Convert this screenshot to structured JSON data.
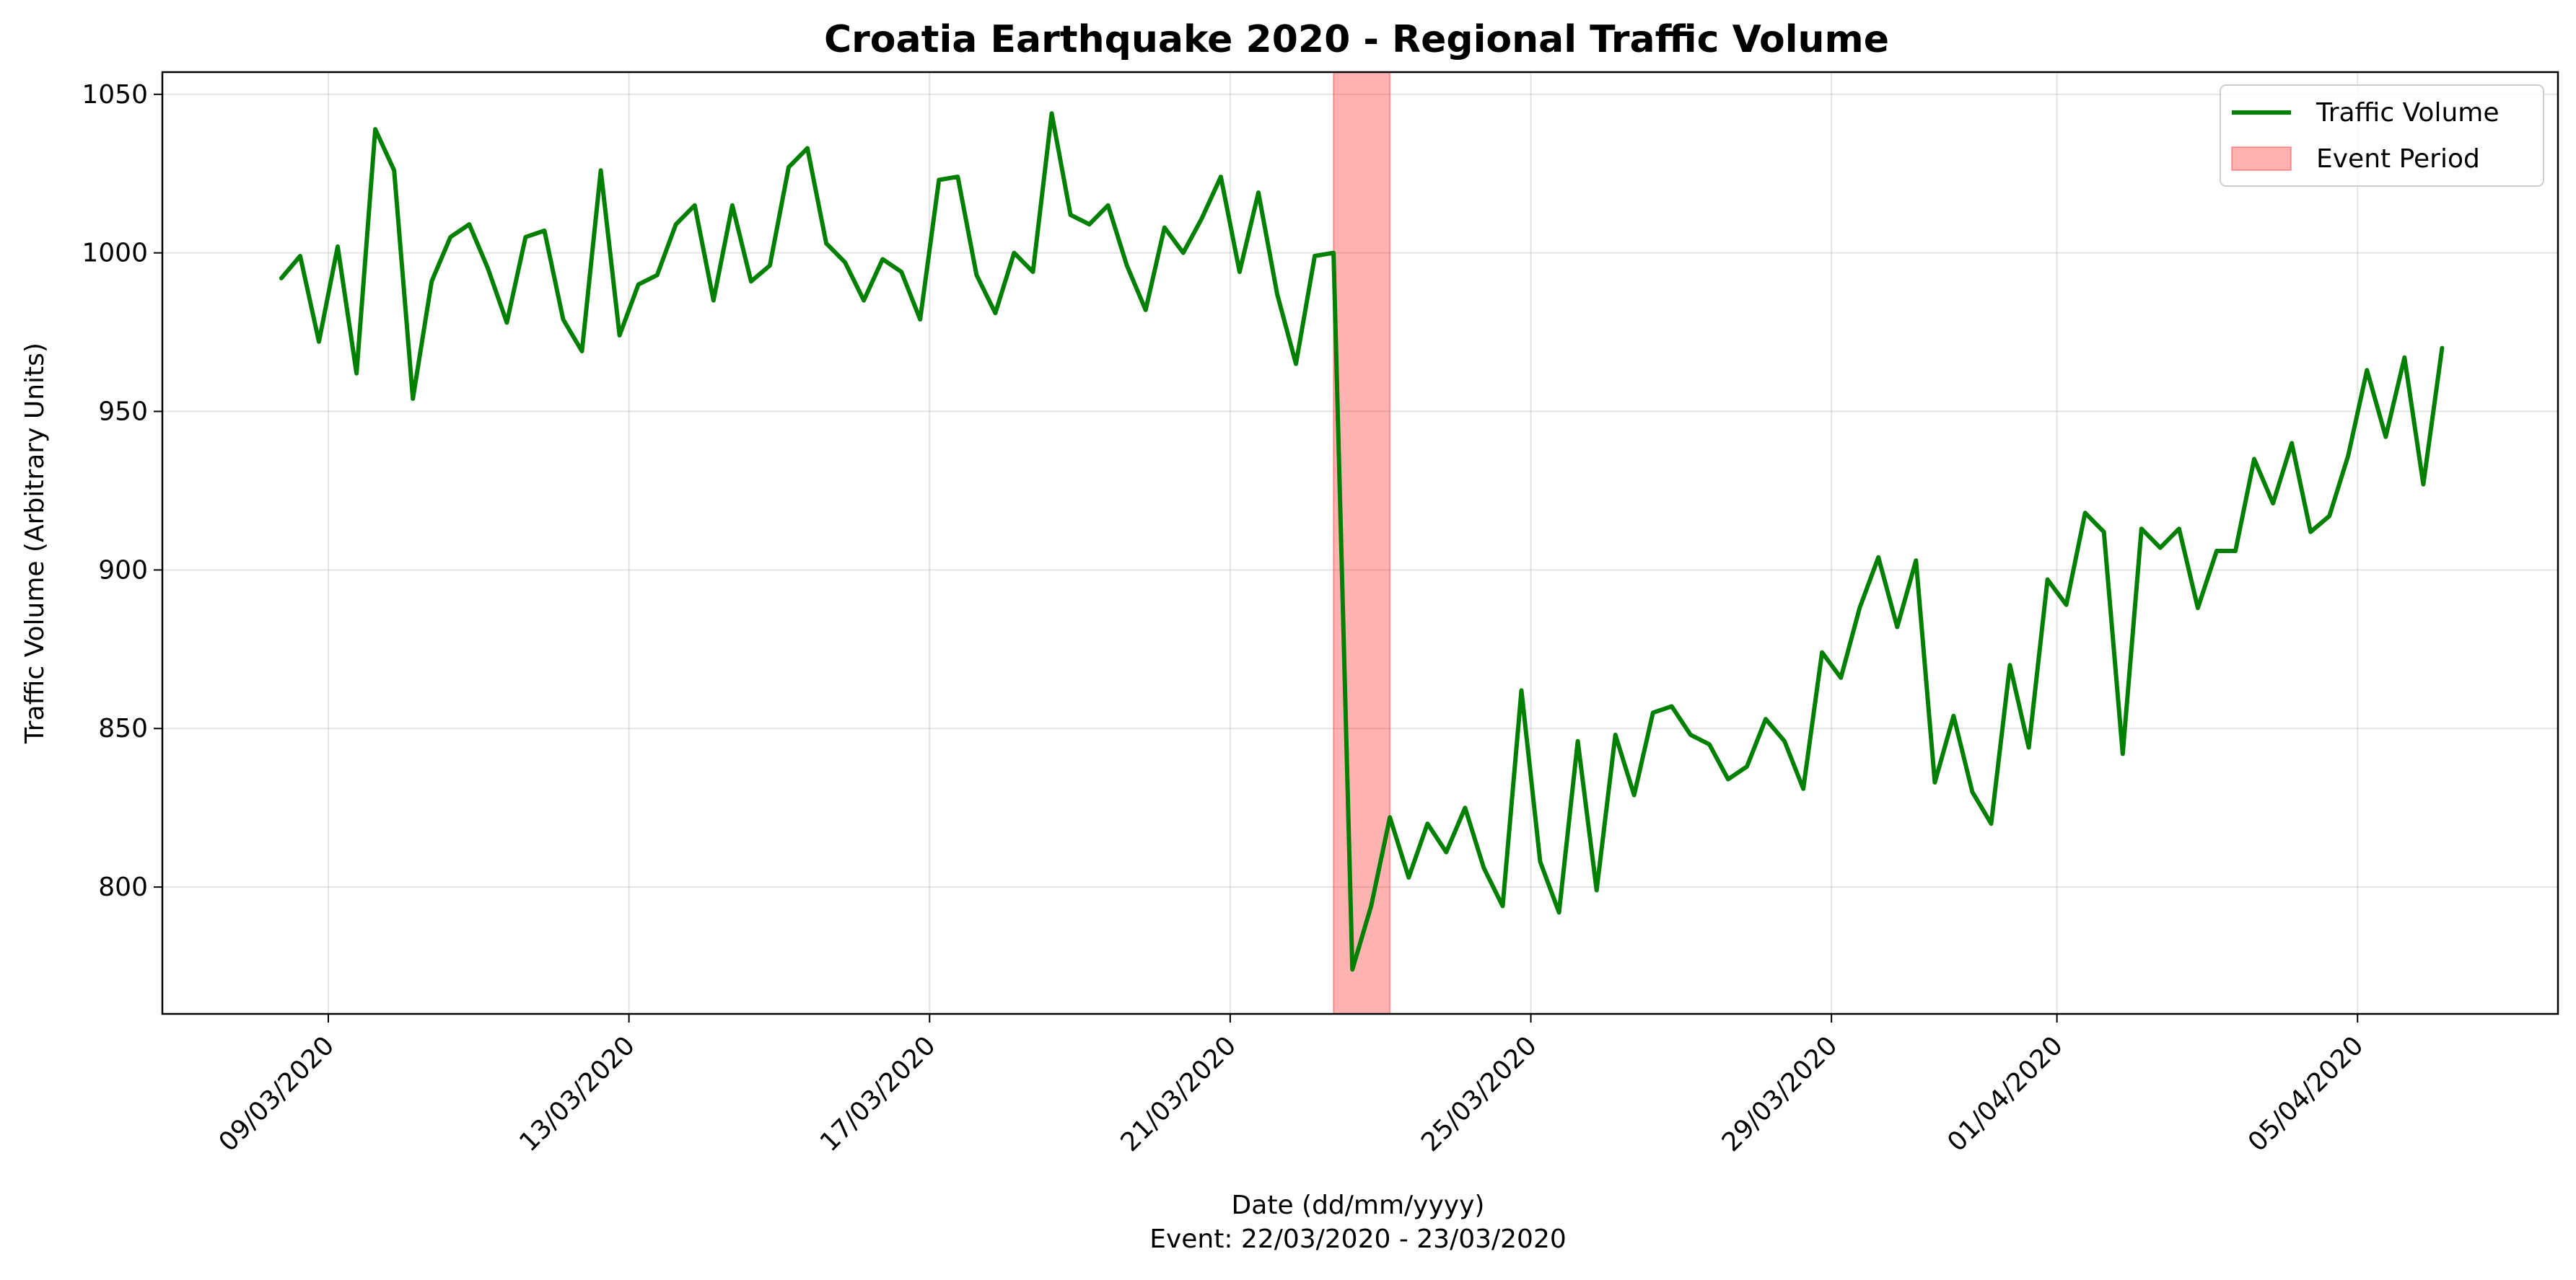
{
  "chart_data": {
    "type": "line",
    "title": "Croatia Earthquake 2020 - Regional Traffic Volume",
    "xlabel": "Date (dd/mm/yyyy)",
    "xlabel_note": "Event: 22/03/2020 - 23/03/2020",
    "ylabel": "Traffic Volume (Arbitrary Units)",
    "grid": true,
    "legend_position": "top-right",
    "x_tick_labels": [
      "09/03/2020",
      "13/03/2020",
      "17/03/2020",
      "21/03/2020",
      "25/03/2020",
      "29/03/2020",
      "01/04/2020",
      "05/04/2020"
    ],
    "x_tick_dates": [
      "2020-03-09",
      "2020-03-13",
      "2020-03-17",
      "2020-03-21",
      "2020-03-25",
      "2020-03-29",
      "2020-04-01",
      "2020-04-05"
    ],
    "y_ticks": [
      800,
      850,
      900,
      950,
      1000,
      1050
    ],
    "xlim": [
      "2020-03-06 19:00",
      "2020-04-07 16:00"
    ],
    "ylim": [
      760,
      1057
    ],
    "series": [
      {
        "name": "Traffic Volume",
        "color": "#008000",
        "points": [
          [
            "2020-03-08 09:00",
            992
          ],
          [
            "2020-03-08 15:00",
            999
          ],
          [
            "2020-03-08 21:00",
            972
          ],
          [
            "2020-03-09 03:00",
            1002
          ],
          [
            "2020-03-09 09:00",
            962
          ],
          [
            "2020-03-09 15:00",
            1039
          ],
          [
            "2020-03-09 21:00",
            1026
          ],
          [
            "2020-03-10 03:00",
            954
          ],
          [
            "2020-03-10 09:00",
            991
          ],
          [
            "2020-03-10 15:00",
            1005
          ],
          [
            "2020-03-10 21:00",
            1009
          ],
          [
            "2020-03-11 03:00",
            995
          ],
          [
            "2020-03-11 09:00",
            978
          ],
          [
            "2020-03-11 15:00",
            1005
          ],
          [
            "2020-03-11 21:00",
            1007
          ],
          [
            "2020-03-12 03:00",
            979
          ],
          [
            "2020-03-12 09:00",
            969
          ],
          [
            "2020-03-12 15:00",
            1026
          ],
          [
            "2020-03-12 21:00",
            974
          ],
          [
            "2020-03-13 03:00",
            990
          ],
          [
            "2020-03-13 09:00",
            993
          ],
          [
            "2020-03-13 15:00",
            1009
          ],
          [
            "2020-03-13 21:00",
            1015
          ],
          [
            "2020-03-14 03:00",
            985
          ],
          [
            "2020-03-14 09:00",
            1015
          ],
          [
            "2020-03-14 15:00",
            991
          ],
          [
            "2020-03-14 21:00",
            996
          ],
          [
            "2020-03-15 03:00",
            1027
          ],
          [
            "2020-03-15 09:00",
            1033
          ],
          [
            "2020-03-15 15:00",
            1003
          ],
          [
            "2020-03-15 21:00",
            997
          ],
          [
            "2020-03-16 03:00",
            985
          ],
          [
            "2020-03-16 09:00",
            998
          ],
          [
            "2020-03-16 15:00",
            994
          ],
          [
            "2020-03-16 21:00",
            979
          ],
          [
            "2020-03-17 03:00",
            1023
          ],
          [
            "2020-03-17 09:00",
            1024
          ],
          [
            "2020-03-17 15:00",
            993
          ],
          [
            "2020-03-17 21:00",
            981
          ],
          [
            "2020-03-18 03:00",
            1000
          ],
          [
            "2020-03-18 09:00",
            994
          ],
          [
            "2020-03-18 15:00",
            1044
          ],
          [
            "2020-03-18 21:00",
            1012
          ],
          [
            "2020-03-19 03:00",
            1009
          ],
          [
            "2020-03-19 09:00",
            1015
          ],
          [
            "2020-03-19 15:00",
            996
          ],
          [
            "2020-03-19 21:00",
            982
          ],
          [
            "2020-03-20 03:00",
            1008
          ],
          [
            "2020-03-20 09:00",
            1000
          ],
          [
            "2020-03-20 15:00",
            1011
          ],
          [
            "2020-03-20 21:00",
            1024
          ],
          [
            "2020-03-21 03:00",
            994
          ],
          [
            "2020-03-21 09:00",
            1019
          ],
          [
            "2020-03-21 15:00",
            987
          ],
          [
            "2020-03-21 21:00",
            965
          ],
          [
            "2020-03-22 03:00",
            999
          ],
          [
            "2020-03-22 09:00",
            1000
          ],
          [
            "2020-03-22 15:00",
            774
          ],
          [
            "2020-03-22 21:00",
            794
          ],
          [
            "2020-03-23 03:00",
            822
          ],
          [
            "2020-03-23 09:00",
            803
          ],
          [
            "2020-03-23 15:00",
            820
          ],
          [
            "2020-03-23 21:00",
            811
          ],
          [
            "2020-03-24 03:00",
            825
          ],
          [
            "2020-03-24 09:00",
            806
          ],
          [
            "2020-03-24 15:00",
            794
          ],
          [
            "2020-03-24 21:00",
            862
          ],
          [
            "2020-03-25 03:00",
            808
          ],
          [
            "2020-03-25 09:00",
            792
          ],
          [
            "2020-03-25 15:00",
            846
          ],
          [
            "2020-03-25 21:00",
            799
          ],
          [
            "2020-03-26 03:00",
            848
          ],
          [
            "2020-03-26 09:00",
            829
          ],
          [
            "2020-03-26 15:00",
            855
          ],
          [
            "2020-03-26 21:00",
            857
          ],
          [
            "2020-03-27 03:00",
            848
          ],
          [
            "2020-03-27 09:00",
            845
          ],
          [
            "2020-03-27 15:00",
            834
          ],
          [
            "2020-03-27 21:00",
            838
          ],
          [
            "2020-03-28 03:00",
            853
          ],
          [
            "2020-03-28 09:00",
            846
          ],
          [
            "2020-03-28 15:00",
            831
          ],
          [
            "2020-03-28 21:00",
            874
          ],
          [
            "2020-03-29 03:00",
            866
          ],
          [
            "2020-03-29 09:00",
            888
          ],
          [
            "2020-03-29 15:00",
            904
          ],
          [
            "2020-03-29 21:00",
            882
          ],
          [
            "2020-03-30 03:00",
            903
          ],
          [
            "2020-03-30 09:00",
            833
          ],
          [
            "2020-03-30 15:00",
            854
          ],
          [
            "2020-03-30 21:00",
            830
          ],
          [
            "2020-03-31 03:00",
            820
          ],
          [
            "2020-03-31 09:00",
            870
          ],
          [
            "2020-03-31 15:00",
            844
          ],
          [
            "2020-03-31 21:00",
            897
          ],
          [
            "2020-04-01 03:00",
            889
          ],
          [
            "2020-04-01 09:00",
            918
          ],
          [
            "2020-04-01 15:00",
            912
          ],
          [
            "2020-04-01 21:00",
            842
          ],
          [
            "2020-04-02 03:00",
            913
          ],
          [
            "2020-04-02 09:00",
            907
          ],
          [
            "2020-04-02 15:00",
            913
          ],
          [
            "2020-04-02 21:00",
            888
          ],
          [
            "2020-04-03 03:00",
            906
          ],
          [
            "2020-04-03 09:00",
            906
          ],
          [
            "2020-04-03 15:00",
            935
          ],
          [
            "2020-04-03 21:00",
            921
          ],
          [
            "2020-04-04 03:00",
            940
          ],
          [
            "2020-04-04 09:00",
            912
          ],
          [
            "2020-04-04 15:00",
            917
          ],
          [
            "2020-04-04 21:00",
            936
          ],
          [
            "2020-04-05 03:00",
            963
          ],
          [
            "2020-04-05 09:00",
            942
          ],
          [
            "2020-04-05 15:00",
            967
          ],
          [
            "2020-04-05 21:00",
            927
          ],
          [
            "2020-04-06 03:00",
            970
          ]
        ]
      }
    ],
    "event_period": {
      "name": "Event Period",
      "start": "2020-03-22 09:00",
      "end": "2020-03-23 03:00",
      "color": "#ff0000"
    }
  }
}
